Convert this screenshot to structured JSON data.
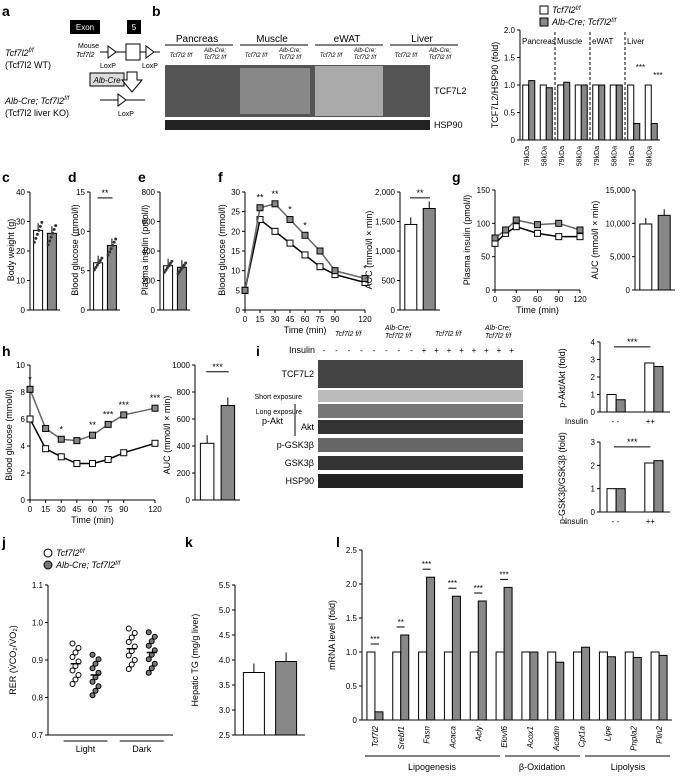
{
  "panel_labels": {
    "a": "a",
    "b": "b",
    "c": "c",
    "d": "d",
    "e": "e",
    "f": "f",
    "g": "g",
    "h": "h",
    "i": "i",
    "j": "j",
    "k": "k",
    "l": "l"
  },
  "legend": {
    "wt": "Tcf7l2",
    "wt_sup": "f/f",
    "ko": "Alb-Cre; Tcf7l2",
    "ko_sup": "f/f"
  },
  "panel_a": {
    "wt_line1": "Tcf7l2",
    "wt_sup": "f/f",
    "wt_line2": "(Tcf7l2 WT)",
    "ko_line1": "Alb-Cre; Tcf7l2",
    "ko_sup": "f/f",
    "ko_line2": "(Tcf7l2 liver KO)",
    "exon": "Exon",
    "five": "5",
    "mouse": "Mouse",
    "mouse_gene": "Tcf7l2",
    "loxp": "LoxP",
    "albcre": "Alb-Cre"
  },
  "panel_b": {
    "tissues": [
      "Pancreas",
      "Muscle",
      "eWAT",
      "Liver"
    ],
    "geno_wt": "Tcf7l2",
    "geno_ko1": "Alb-Cre;",
    "geno_ko2": "Tcf7l2",
    "sup": "f/f",
    "band1": "TCF7L2",
    "band2": "HSP90",
    "ylabel": "TCF7L2/HSP90 (fold)",
    "section_labels": [
      "Pancreas",
      "Muscle",
      "eWAT",
      "Liver"
    ],
    "xlabels": [
      "79kDa",
      "58kDa",
      "79kDa",
      "58kDa",
      "79kDa",
      "58kDa",
      "79kDa",
      "58kDa"
    ],
    "yticks": [
      "0",
      "0.5",
      "1.0",
      "1.5",
      "2.0"
    ],
    "sig": [
      "***",
      "***"
    ]
  },
  "chart_data": [
    {
      "panel": "b",
      "type": "bar",
      "ylabel": "TCF7L2/HSP90 (fold)",
      "ylim": [
        0,
        2.0
      ],
      "categories": [
        "79kDa",
        "58kDa",
        "79kDa",
        "58kDa",
        "79kDa",
        "58kDa",
        "79kDa",
        "58kDa"
      ],
      "series": [
        {
          "name": "Tcf7l2 f/f",
          "values": [
            1.0,
            1.0,
            1.0,
            1.0,
            1.0,
            1.0,
            1.0,
            1.0
          ]
        },
        {
          "name": "Alb-Cre; Tcf7l2 f/f",
          "values": [
            1.08,
            0.95,
            1.05,
            1.0,
            1.0,
            1.0,
            0.3,
            0.3
          ]
        }
      ]
    },
    {
      "panel": "c",
      "type": "bar",
      "ylabel": "Body weight (g)",
      "ylim": [
        0,
        40
      ],
      "yticks": [
        "0",
        "10",
        "20",
        "30",
        "40"
      ],
      "values": [
        27,
        26
      ]
    },
    {
      "panel": "d",
      "type": "bar",
      "ylabel": "Blood glucose (mmol/l)",
      "ylim": [
        0,
        15
      ],
      "yticks": [
        "0",
        "5",
        "10",
        "15"
      ],
      "values": [
        6,
        8.2
      ],
      "sig": "**"
    },
    {
      "panel": "e",
      "type": "bar",
      "ylabel": "Plasma insulin (pmol/l)",
      "ylim": [
        0,
        800
      ],
      "yticks": [
        "0",
        "200",
        "400",
        "600",
        "800"
      ],
      "values": [
        300,
        290
      ]
    },
    {
      "panel": "f",
      "type": "line",
      "xlabel": "Time (min)",
      "ylabel": "Blood glucose (mmol/l)",
      "ylim": [
        0,
        30
      ],
      "x": [
        0,
        15,
        30,
        45,
        60,
        75,
        90,
        120
      ],
      "xticks": [
        "0",
        "15",
        "30",
        "45",
        "60",
        "75",
        "90",
        "120"
      ],
      "yticks": [
        "0",
        "5",
        "10",
        "15",
        "20",
        "25",
        "30"
      ],
      "series": [
        {
          "name": "Tcf7l2 f/f",
          "values": [
            5,
            23,
            20,
            17,
            14,
            11,
            9,
            7
          ]
        },
        {
          "name": "Alb-Cre; Tcf7l2 f/f",
          "values": [
            5,
            26,
            27,
            23,
            19,
            15,
            10,
            8
          ]
        }
      ],
      "sig": [
        "**",
        "**",
        "*",
        "*",
        "*"
      ]
    },
    {
      "panel": "f_auc",
      "type": "bar",
      "ylabel": "AUC (mmol/l × min)",
      "ylim": [
        0,
        2000
      ],
      "yticks": [
        "0",
        "500",
        "1,000",
        "1,500",
        "2,000"
      ],
      "values": [
        1450,
        1720
      ],
      "sig": "**"
    },
    {
      "panel": "g",
      "type": "line",
      "xlabel": "Time (min)",
      "ylabel": "Plasma insulin (pmol/l)",
      "ylim": [
        0,
        150
      ],
      "x": [
        0,
        15,
        30,
        60,
        90,
        120
      ],
      "xticks": [
        "0",
        "30",
        "60",
        "90",
        "120"
      ],
      "yticks": [
        "0",
        "50",
        "100",
        "150"
      ],
      "series": [
        {
          "name": "Tcf7l2 f/f",
          "values": [
            70,
            85,
            95,
            85,
            80,
            80
          ]
        },
        {
          "name": "Alb-Cre; Tcf7l2 f/f",
          "values": [
            78,
            90,
            105,
            98,
            100,
            90
          ]
        }
      ]
    },
    {
      "panel": "g_auc",
      "type": "bar",
      "ylabel": "AUC (mmol/l × min)",
      "ylim": [
        0,
        15000
      ],
      "yticks": [
        "0",
        "5,000",
        "10,000",
        "15,000"
      ],
      "values": [
        9900,
        11200
      ]
    },
    {
      "panel": "h",
      "type": "line",
      "xlabel": "Time (min)",
      "ylabel": "Blood glucose (mmol/l)",
      "ylim": [
        0,
        10
      ],
      "x": [
        0,
        15,
        30,
        45,
        60,
        75,
        90,
        120
      ],
      "xticks": [
        "0",
        "15",
        "30",
        "45",
        "60",
        "75",
        "90",
        "120"
      ],
      "yticks": [
        "0",
        "2",
        "4",
        "6",
        "8",
        "10"
      ],
      "series": [
        {
          "name": "Tcf7l2 f/f",
          "values": [
            6,
            3.8,
            3.2,
            2.7,
            2.7,
            3.0,
            3.5,
            4.2
          ]
        },
        {
          "name": "Alb-Cre; Tcf7l2 f/f",
          "values": [
            8.2,
            5.3,
            4.5,
            4.4,
            4.8,
            5.6,
            6.3,
            6.8
          ]
        }
      ],
      "sig": [
        "*",
        "*",
        "**",
        "***",
        "***",
        "***"
      ]
    },
    {
      "panel": "h_auc",
      "type": "bar",
      "ylabel": "AUC (mmol/l × min)",
      "ylim": [
        0,
        1000
      ],
      "yticks": [
        "0",
        "200",
        "400",
        "600",
        "800",
        "1000"
      ],
      "values": [
        420,
        700
      ],
      "sig": "***"
    },
    {
      "panel": "i_akt",
      "type": "bar",
      "ylabel": "p-Akt/Akt (fold)",
      "ylim": [
        0,
        4
      ],
      "yticks": [
        "0",
        "1",
        "2",
        "3",
        "4"
      ],
      "categories": [
        "-",
        "-",
        "+",
        "+"
      ],
      "values": [
        1.0,
        0.7,
        2.8,
        2.6
      ],
      "sig": "***"
    },
    {
      "panel": "i_gsk",
      "type": "bar",
      "ylabel": "p-GSK3β/GSK3β (fold)",
      "ylim": [
        0,
        3
      ],
      "yticks": [
        "0",
        "1",
        "2",
        "3"
      ],
      "categories": [
        "-",
        "-",
        "+",
        "+"
      ],
      "values": [
        1.0,
        1.0,
        2.1,
        2.2
      ],
      "sig": "***"
    },
    {
      "panel": "j",
      "type": "scatter",
      "ylabel": "RER (V̇CO₂/V̇O₂)",
      "ylim": [
        0.7,
        1.1
      ],
      "yticks": [
        "0.7",
        "0.8",
        "0.9",
        "1.0",
        "1.1"
      ],
      "categories": [
        "Light",
        "Dark"
      ],
      "series": [
        {
          "name": "Tcf7l2 f/f",
          "values": [
            0.89,
            0.93
          ]
        },
        {
          "name": "Alb-Cre; Tcf7l2 f/f",
          "values": [
            0.86,
            0.92
          ]
        }
      ]
    },
    {
      "panel": "k",
      "type": "bar",
      "ylabel": "Hepatic TG (mg/g liver)",
      "ylim": [
        2.5,
        5.5
      ],
      "yticks": [
        "2.5",
        "3.0",
        "3.5",
        "4.0",
        "4.5",
        "5.0",
        "5.5"
      ],
      "values": [
        3.75,
        3.97
      ]
    },
    {
      "panel": "l",
      "type": "bar",
      "ylabel": "mRNA level (fold)",
      "ylim": [
        0,
        2.5
      ],
      "yticks": [
        "0",
        "0.5",
        "1.0",
        "1.5",
        "2.0",
        "2.5"
      ],
      "categories": [
        "Tcf7l2",
        "Srebf1",
        "Fasn",
        "Acaca",
        "Acly",
        "Elovl6",
        "Acox1",
        "Acadm",
        "Cpt1a",
        "Lipe",
        "Pnpla2",
        "Plin2"
      ],
      "series": [
        {
          "name": "Tcf7l2 f/f",
          "values": [
            1,
            1,
            1,
            1,
            1,
            1,
            1,
            1,
            1,
            1,
            1,
            1
          ]
        },
        {
          "name": "Alb-Cre; Tcf7l2 f/f",
          "values": [
            0.12,
            1.25,
            2.1,
            1.82,
            1.75,
            1.95,
            1.0,
            0.85,
            1.07,
            0.93,
            0.92,
            0.95
          ]
        }
      ],
      "sig": [
        "***",
        "**",
        "***",
        "***",
        "***",
        "***"
      ],
      "groups": [
        "Lipogenesis",
        "β-Oxidation",
        "Lipolysis"
      ]
    }
  ],
  "panel_i": {
    "insulin": "Insulin",
    "minus": "-",
    "plus": "+",
    "rows": [
      "TCF7L2",
      "Short exposure",
      "Long exposure",
      "Akt",
      "p-GSK3β",
      "GSK3β",
      "HSP90"
    ],
    "pakt": "p-Akt",
    "insulin_axis": "Insulin",
    "x_minus": "- -",
    "x_plus": "++"
  },
  "panel_j": {
    "cats": [
      "Light",
      "Dark"
    ]
  }
}
